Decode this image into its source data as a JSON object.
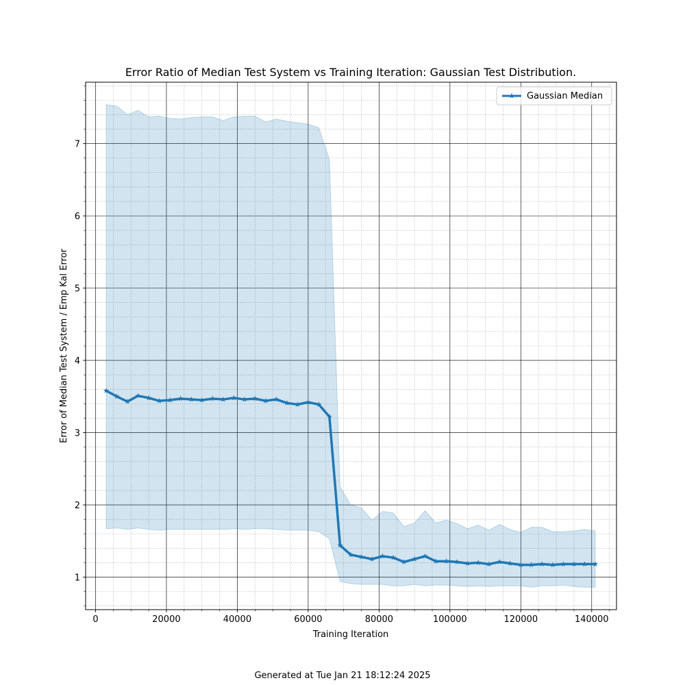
{
  "chart_data": {
    "type": "line",
    "title": "Error Ratio of Median Test System vs Training Iteration: Gaussian Test Distribution.",
    "xlabel": "Training Iteration",
    "ylabel": "Error of Median Test System / Emp Kal Error",
    "xlim": [
      -2800,
      147000
    ],
    "ylim": [
      0.55,
      7.85
    ],
    "xticks": [
      0,
      20000,
      40000,
      60000,
      80000,
      100000,
      120000,
      140000
    ],
    "xtick_labels": [
      "0",
      "20000",
      "40000",
      "60000",
      "80000",
      "100000",
      "120000",
      "140000"
    ],
    "yticks": [
      1,
      2,
      3,
      4,
      5,
      6,
      7
    ],
    "ytick_labels": [
      "1",
      "2",
      "3",
      "4",
      "5",
      "6",
      "7"
    ],
    "grid": "major and minor",
    "legend_position": "top-right",
    "series": [
      {
        "name": "Gaussian Median",
        "color": "#1f77b4",
        "marker": "star",
        "x": [
          3000,
          6000,
          9000,
          12000,
          15000,
          18000,
          21000,
          24000,
          27000,
          30000,
          33000,
          36000,
          39000,
          42000,
          45000,
          48000,
          51000,
          54000,
          57000,
          60000,
          63000,
          66000,
          69000,
          72000,
          75000,
          78000,
          81000,
          84000,
          87000,
          90000,
          93000,
          96000,
          99000,
          102000,
          105000,
          108000,
          111000,
          114000,
          117000,
          120000,
          123000,
          126000,
          129000,
          132000,
          135000,
          138000,
          141000
        ],
        "y": [
          3.58,
          3.5,
          3.43,
          3.51,
          3.48,
          3.44,
          3.45,
          3.47,
          3.46,
          3.45,
          3.47,
          3.46,
          3.48,
          3.46,
          3.47,
          3.44,
          3.46,
          3.41,
          3.39,
          3.42,
          3.39,
          3.22,
          1.44,
          1.31,
          1.28,
          1.25,
          1.29,
          1.27,
          1.21,
          1.25,
          1.29,
          1.22,
          1.22,
          1.21,
          1.19,
          1.2,
          1.18,
          1.21,
          1.19,
          1.17,
          1.17,
          1.18,
          1.17,
          1.18,
          1.18,
          1.18,
          1.18
        ],
        "band_upper": [
          7.54,
          7.52,
          7.4,
          7.46,
          7.37,
          7.38,
          7.35,
          7.34,
          7.36,
          7.37,
          7.37,
          7.32,
          7.37,
          7.38,
          7.38,
          7.3,
          7.34,
          7.31,
          7.29,
          7.27,
          7.22,
          6.78,
          2.25,
          2.0,
          1.96,
          1.79,
          1.91,
          1.89,
          1.7,
          1.75,
          1.92,
          1.75,
          1.79,
          1.74,
          1.67,
          1.72,
          1.65,
          1.73,
          1.66,
          1.62,
          1.69,
          1.69,
          1.63,
          1.63,
          1.64,
          1.66,
          1.64
        ],
        "band_lower": [
          1.67,
          1.68,
          1.66,
          1.68,
          1.66,
          1.65,
          1.66,
          1.66,
          1.66,
          1.66,
          1.66,
          1.66,
          1.67,
          1.66,
          1.67,
          1.67,
          1.66,
          1.65,
          1.65,
          1.65,
          1.63,
          1.53,
          0.94,
          0.91,
          0.9,
          0.9,
          0.9,
          0.88,
          0.88,
          0.9,
          0.88,
          0.89,
          0.89,
          0.88,
          0.87,
          0.88,
          0.87,
          0.88,
          0.88,
          0.88,
          0.86,
          0.88,
          0.88,
          0.89,
          0.87,
          0.86,
          0.86
        ]
      }
    ]
  },
  "footer": "Generated at Tue Jan 21 18:12:24 2025"
}
